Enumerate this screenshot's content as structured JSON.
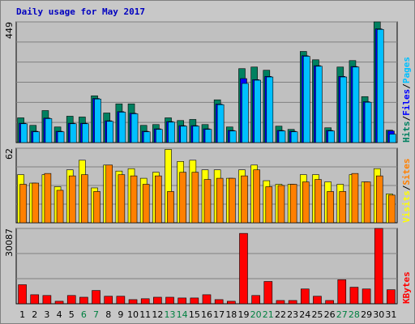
{
  "chart_data": [
    {
      "type": "bar",
      "title": "Daily usage for May 2017",
      "categories": [
        "1",
        "2",
        "3",
        "4",
        "5",
        "6",
        "7",
        "8",
        "9",
        "10",
        "11",
        "12",
        "13",
        "14",
        "15",
        "16",
        "17",
        "18",
        "19",
        "20",
        "21",
        "22",
        "23",
        "24",
        "25",
        "26",
        "27",
        "28",
        "29",
        "30",
        "31"
      ],
      "category_colors": [
        "#000000",
        "#000000",
        "#000000",
        "#000000",
        "#000000",
        "#008040",
        "#008040",
        "#000000",
        "#000000",
        "#000000",
        "#000000",
        "#000000",
        "#008040",
        "#008040",
        "#000000",
        "#000000",
        "#000000",
        "#000000",
        "#000000",
        "#008040",
        "#008040",
        "#000000",
        "#000000",
        "#000000",
        "#000000",
        "#000000",
        "#008040",
        "#008040",
        "#000000",
        "#000000",
        "#000000"
      ],
      "ylim": [
        0,
        449
      ],
      "yticks": [
        449
      ],
      "series": [
        {
          "name": "Hits",
          "color": "#008060",
          "values": [
            92,
            64,
            119,
            58,
            98,
            95,
            174,
            110,
            144,
            144,
            64,
            67,
            92,
            82,
            86,
            67,
            159,
            58,
            275,
            281,
            269,
            61,
            49,
            339,
            308,
            55,
            281,
            305,
            171,
            449,
            46
          ]
        },
        {
          "name": "Files",
          "color": "#0000ff",
          "values": [
            72,
            42,
            91,
            42,
            72,
            72,
            164,
            81,
            115,
            109,
            42,
            51,
            78,
            63,
            63,
            51,
            143,
            45,
            238,
            234,
            246,
            45,
            42,
            323,
            286,
            45,
            246,
            283,
            152,
            423,
            43
          ]
        },
        {
          "name": "Pages",
          "color": "#00c0ff",
          "values": [
            70,
            40,
            89,
            40,
            70,
            70,
            162,
            79,
            113,
            107,
            40,
            49,
            76,
            61,
            61,
            49,
            141,
            43,
            220,
            232,
            244,
            43,
            40,
            321,
            284,
            43,
            244,
            281,
            150,
            421,
            31
          ]
        }
      ]
    },
    {
      "type": "bar",
      "ylim": [
        0,
        62
      ],
      "yticks": [
        62
      ],
      "series": [
        {
          "name": "Visits",
          "color": "#ffff00",
          "values": [
            40,
            33,
            40,
            30,
            44,
            52,
            29,
            48,
            43,
            45,
            37,
            42,
            61,
            51,
            52,
            44,
            44,
            37,
            44,
            48,
            35,
            32,
            32,
            40,
            40,
            34,
            32,
            40,
            34,
            45,
            24
          ]
        },
        {
          "name": "Sites",
          "color": "#ff8000",
          "values": [
            32,
            33,
            41,
            27,
            39,
            40,
            26,
            48,
            40,
            39,
            32,
            39,
            26,
            42,
            42,
            36,
            37,
            37,
            39,
            44,
            30,
            31,
            32,
            34,
            36,
            26,
            26,
            41,
            34,
            39,
            23
          ]
        }
      ]
    },
    {
      "type": "bar",
      "ylim": [
        0,
        30087
      ],
      "yticks": [
        30087
      ],
      "series": [
        {
          "name": "KBytes",
          "color": "#ff0000",
          "values": [
            7600,
            3600,
            3300,
            1000,
            3300,
            2600,
            5300,
            3000,
            3000,
            1650,
            2000,
            2600,
            2600,
            2300,
            2300,
            3600,
            1650,
            1000,
            28100,
            3300,
            8900,
            1300,
            1300,
            5900,
            3000,
            1300,
            9600,
            6600,
            5900,
            30087,
            5600
          ]
        }
      ]
    }
  ]
}
